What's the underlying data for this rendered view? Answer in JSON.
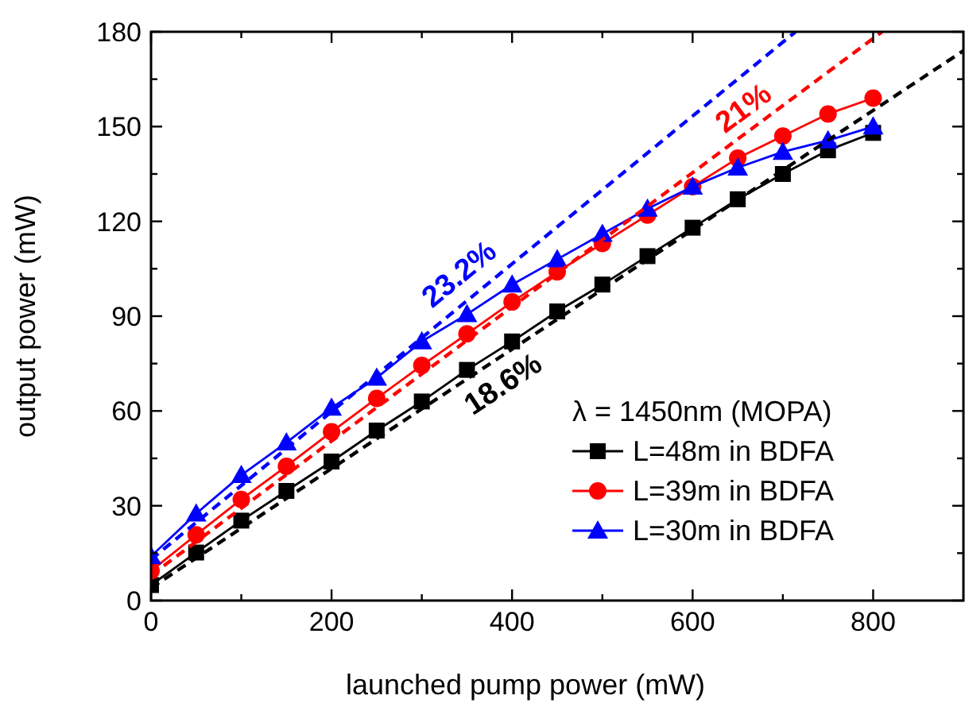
{
  "chart_data": {
    "type": "line",
    "xlabel": "launched pump power (mW)",
    "ylabel": "output power (mW)",
    "legend_title": "λ = 1450nm (MOPA)",
    "legend": "bottom right",
    "grid": false,
    "x": [
      0,
      50,
      100,
      150,
      200,
      250,
      300,
      350,
      400,
      450,
      500,
      550,
      600,
      650,
      700,
      750,
      800
    ],
    "xlim": [
      0,
      900
    ],
    "xticks": [
      0,
      {
        "value": 100,
        "label": null
      },
      200,
      {
        "value": 300,
        "label": null
      },
      400,
      {
        "value": 500,
        "label": null
      },
      600,
      {
        "value": 700,
        "label": null
      },
      800
    ],
    "ylim": [
      0,
      180
    ],
    "yticks": [
      0,
      {
        "value": 15,
        "label": null
      },
      30,
      {
        "value": 45,
        "label": null
      },
      60,
      {
        "value": 75,
        "label": null
      },
      90,
      {
        "value": 105,
        "label": null
      },
      120,
      {
        "value": 135,
        "label": null
      },
      150,
      {
        "value": 165,
        "label": null
      },
      180
    ],
    "series": [
      {
        "name": "L=48m in BDFA",
        "color": "#000000",
        "marker": "square",
        "line_style": "solid",
        "values": [
          4.9,
          15.2,
          25.3,
          34.7,
          44,
          53.8,
          63,
          73,
          82,
          91.5,
          100,
          109,
          118,
          127,
          135,
          142.5,
          148
        ]
      },
      {
        "name": "L=39m in BDFA",
        "color": "#ff0000",
        "marker": "circle",
        "line_style": "solid",
        "values": [
          9.4,
          20.8,
          32,
          42.5,
          53.4,
          64,
          74.4,
          84.4,
          94.5,
          104,
          113,
          122,
          131,
          140,
          147,
          154,
          159
        ]
      },
      {
        "name": "L=30m in BDFA",
        "color": "#0000ff",
        "marker": "triangle",
        "line_style": "solid",
        "values": [
          14,
          27.5,
          39.7,
          50,
          61,
          70.5,
          82,
          90.6,
          100,
          108,
          116,
          124,
          131,
          137,
          142,
          145.6,
          150
        ]
      },
      {
        "color": "#000000",
        "marker": "none",
        "line_style": "dashed",
        "x": [
          0,
          900
        ],
        "values": [
          4,
          174
        ]
      },
      {
        "color": "#ff0000",
        "marker": "none",
        "line_style": "dashed",
        "x": [
          0,
          810
        ],
        "values": [
          8,
          180
        ]
      },
      {
        "color": "#0000ff",
        "marker": "none",
        "line_style": "dashed",
        "x": [
          0,
          714
        ],
        "values": [
          13,
          180
        ]
      }
    ],
    "annotations": [
      "18.6%",
      "21%",
      "23.2%"
    ]
  }
}
